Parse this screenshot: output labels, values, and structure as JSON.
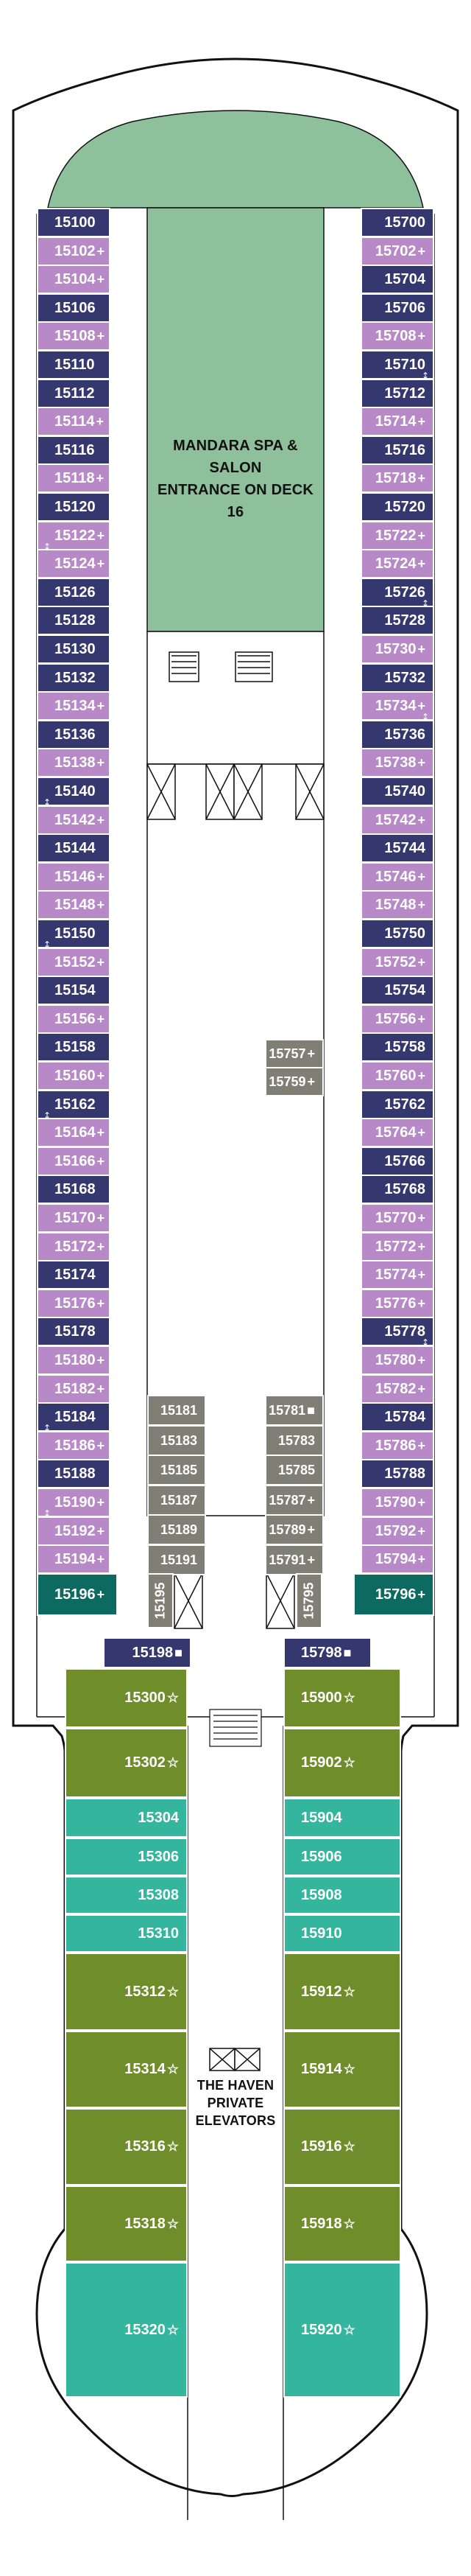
{
  "colors": {
    "navy": "#35386e",
    "lilac": "#b889c7",
    "green_spa": "#8ec09c",
    "olive": "#6f8d2a",
    "teal": "#34b59d",
    "teal_dark": "#0d6a60",
    "grey": "#7f7f76",
    "outline": "#111111"
  },
  "icons": {
    "balcony_symbol": "+",
    "accessible_symbol": "■",
    "suite_symbol": "☆",
    "connecting_symbol": "↕",
    "elevator_symbol": "elevator-icon"
  },
  "labels": {
    "spa": [
      "MANDARA SPA & SALON",
      "ENTRANCE ON DECK 16"
    ],
    "haven": [
      "THE HAVEN",
      "PRIVATE",
      "ELEVATORS"
    ]
  },
  "rooms": {
    "left_column": [
      {
        "num": "15100",
        "sym": "",
        "type": "navy"
      },
      {
        "num": "15102",
        "sym": "+",
        "type": "lilac"
      },
      {
        "num": "15104",
        "sym": "+",
        "type": "lilac"
      },
      {
        "num": "15106",
        "sym": "",
        "type": "navy"
      },
      {
        "num": "15108",
        "sym": "+",
        "type": "lilac"
      },
      {
        "num": "15110",
        "sym": "",
        "type": "navy"
      },
      {
        "num": "15112",
        "sym": "",
        "type": "navy"
      },
      {
        "num": "15114",
        "sym": "+",
        "type": "lilac"
      },
      {
        "num": "15116",
        "sym": "",
        "type": "navy"
      },
      {
        "num": "15118",
        "sym": "+",
        "type": "lilac"
      },
      {
        "num": "15120",
        "sym": "",
        "type": "navy"
      },
      {
        "num": "15122",
        "sym": "+",
        "type": "lilac"
      },
      {
        "num": "15124",
        "sym": "+",
        "type": "lilac"
      },
      {
        "num": "15126",
        "sym": "",
        "type": "navy"
      },
      {
        "num": "15128",
        "sym": "",
        "type": "navy"
      },
      {
        "num": "15130",
        "sym": "",
        "type": "navy"
      },
      {
        "num": "15132",
        "sym": "",
        "type": "navy"
      },
      {
        "num": "15134",
        "sym": "+",
        "type": "lilac"
      },
      {
        "num": "15136",
        "sym": "",
        "type": "navy"
      },
      {
        "num": "15138",
        "sym": "+",
        "type": "lilac"
      },
      {
        "num": "15140",
        "sym": "",
        "type": "navy"
      },
      {
        "num": "15142",
        "sym": "+",
        "type": "lilac"
      },
      {
        "num": "15144",
        "sym": "",
        "type": "navy"
      },
      {
        "num": "15146",
        "sym": "+",
        "type": "lilac"
      },
      {
        "num": "15148",
        "sym": "+",
        "type": "lilac"
      },
      {
        "num": "15150",
        "sym": "",
        "type": "navy"
      },
      {
        "num": "15152",
        "sym": "+",
        "type": "lilac"
      },
      {
        "num": "15154",
        "sym": "",
        "type": "navy"
      },
      {
        "num": "15156",
        "sym": "+",
        "type": "lilac"
      },
      {
        "num": "15158",
        "sym": "",
        "type": "navy"
      },
      {
        "num": "15160",
        "sym": "+",
        "type": "lilac"
      },
      {
        "num": "15162",
        "sym": "",
        "type": "navy"
      },
      {
        "num": "15164",
        "sym": "+",
        "type": "lilac"
      },
      {
        "num": "15166",
        "sym": "+",
        "type": "lilac"
      },
      {
        "num": "15168",
        "sym": "",
        "type": "navy"
      },
      {
        "num": "15170",
        "sym": "+",
        "type": "lilac"
      },
      {
        "num": "15172",
        "sym": "+",
        "type": "lilac"
      },
      {
        "num": "15174",
        "sym": "",
        "type": "navy"
      },
      {
        "num": "15176",
        "sym": "+",
        "type": "lilac"
      },
      {
        "num": "15178",
        "sym": "",
        "type": "navy"
      },
      {
        "num": "15180",
        "sym": "+",
        "type": "lilac"
      },
      {
        "num": "15182",
        "sym": "+",
        "type": "lilac"
      },
      {
        "num": "15184",
        "sym": "",
        "type": "navy"
      },
      {
        "num": "15186",
        "sym": "+",
        "type": "lilac"
      },
      {
        "num": "15188",
        "sym": "",
        "type": "navy"
      },
      {
        "num": "15190",
        "sym": "+",
        "type": "lilac"
      },
      {
        "num": "15192",
        "sym": "+",
        "type": "lilac"
      },
      {
        "num": "15194",
        "sym": "+",
        "type": "lilac"
      }
    ],
    "right_column": [
      {
        "num": "15700",
        "sym": "",
        "type": "navy"
      },
      {
        "num": "15702",
        "sym": "+",
        "type": "lilac"
      },
      {
        "num": "15704",
        "sym": "",
        "type": "navy"
      },
      {
        "num": "15706",
        "sym": "",
        "type": "navy"
      },
      {
        "num": "15708",
        "sym": "+",
        "type": "lilac"
      },
      {
        "num": "15710",
        "sym": "",
        "type": "navy"
      },
      {
        "num": "15712",
        "sym": "",
        "type": "navy"
      },
      {
        "num": "15714",
        "sym": "+",
        "type": "lilac"
      },
      {
        "num": "15716",
        "sym": "",
        "type": "navy"
      },
      {
        "num": "15718",
        "sym": "+",
        "type": "lilac"
      },
      {
        "num": "15720",
        "sym": "",
        "type": "navy"
      },
      {
        "num": "15722",
        "sym": "+",
        "type": "lilac"
      },
      {
        "num": "15724",
        "sym": "+",
        "type": "lilac"
      },
      {
        "num": "15726",
        "sym": "",
        "type": "navy"
      },
      {
        "num": "15728",
        "sym": "",
        "type": "navy"
      },
      {
        "num": "15730",
        "sym": "+",
        "type": "lilac"
      },
      {
        "num": "15732",
        "sym": "",
        "type": "navy"
      },
      {
        "num": "15734",
        "sym": "+",
        "type": "lilac"
      },
      {
        "num": "15736",
        "sym": "",
        "type": "navy"
      },
      {
        "num": "15738",
        "sym": "+",
        "type": "lilac"
      },
      {
        "num": "15740",
        "sym": "",
        "type": "navy"
      },
      {
        "num": "15742",
        "sym": "+",
        "type": "lilac"
      },
      {
        "num": "15744",
        "sym": "",
        "type": "navy"
      },
      {
        "num": "15746",
        "sym": "+",
        "type": "lilac"
      },
      {
        "num": "15748",
        "sym": "+",
        "type": "lilac"
      },
      {
        "num": "15750",
        "sym": "",
        "type": "navy"
      },
      {
        "num": "15752",
        "sym": "+",
        "type": "lilac"
      },
      {
        "num": "15754",
        "sym": "",
        "type": "navy"
      },
      {
        "num": "15756",
        "sym": "+",
        "type": "lilac"
      },
      {
        "num": "15758",
        "sym": "",
        "type": "navy"
      },
      {
        "num": "15760",
        "sym": "+",
        "type": "lilac"
      },
      {
        "num": "15762",
        "sym": "",
        "type": "navy"
      },
      {
        "num": "15764",
        "sym": "+",
        "type": "lilac"
      },
      {
        "num": "15766",
        "sym": "",
        "type": "navy"
      },
      {
        "num": "15768",
        "sym": "",
        "type": "navy"
      },
      {
        "num": "15770",
        "sym": "+",
        "type": "lilac"
      },
      {
        "num": "15772",
        "sym": "+",
        "type": "lilac"
      },
      {
        "num": "15774",
        "sym": "+",
        "type": "lilac"
      },
      {
        "num": "15776",
        "sym": "+",
        "type": "lilac"
      },
      {
        "num": "15778",
        "sym": "",
        "type": "navy"
      },
      {
        "num": "15780",
        "sym": "+",
        "type": "lilac"
      },
      {
        "num": "15782",
        "sym": "+",
        "type": "lilac"
      },
      {
        "num": "15784",
        "sym": "",
        "type": "navy"
      },
      {
        "num": "15786",
        "sym": "+",
        "type": "lilac"
      },
      {
        "num": "15788",
        "sym": "",
        "type": "navy"
      },
      {
        "num": "15790",
        "sym": "+",
        "type": "lilac"
      },
      {
        "num": "15792",
        "sym": "+",
        "type": "lilac"
      },
      {
        "num": "15794",
        "sym": "+",
        "type": "lilac"
      }
    ],
    "inner_left": [
      {
        "num": "15181",
        "sym": ""
      },
      {
        "num": "15183",
        "sym": ""
      },
      {
        "num": "15185",
        "sym": ""
      },
      {
        "num": "15187",
        "sym": ""
      },
      {
        "num": "15189",
        "sym": ""
      },
      {
        "num": "15191",
        "sym": ""
      }
    ],
    "inner_right": [
      {
        "num": "15781",
        "sym": "■"
      },
      {
        "num": "15783",
        "sym": ""
      },
      {
        "num": "15785",
        "sym": ""
      },
      {
        "num": "15787",
        "sym": "+"
      },
      {
        "num": "15789",
        "sym": "+"
      },
      {
        "num": "15791",
        "sym": "+"
      }
    ],
    "inner_mid": [
      {
        "num": "15757",
        "sym": "+"
      },
      {
        "num": "15759",
        "sym": "+"
      }
    ],
    "rotated": [
      {
        "num": "15195"
      },
      {
        "num": "15795"
      }
    ],
    "corner": [
      {
        "num": "15196",
        "sym": "+"
      },
      {
        "num": "15796",
        "sym": "+"
      }
    ],
    "haven_accessible": [
      {
        "num": "15198",
        "sym": "■"
      },
      {
        "num": "15798",
        "sym": "■"
      }
    ],
    "haven_left": [
      {
        "num": "15300",
        "sym": "☆",
        "type": "olive"
      },
      {
        "num": "15302",
        "sym": "☆",
        "type": "olive"
      },
      {
        "num": "15304",
        "sym": "",
        "type": "teal"
      },
      {
        "num": "15306",
        "sym": "",
        "type": "teal"
      },
      {
        "num": "15308",
        "sym": "",
        "type": "teal"
      },
      {
        "num": "15310",
        "sym": "",
        "type": "teal"
      },
      {
        "num": "15312",
        "sym": "☆",
        "type": "olive"
      },
      {
        "num": "15314",
        "sym": "☆",
        "type": "olive"
      },
      {
        "num": "15316",
        "sym": "☆",
        "type": "olive"
      },
      {
        "num": "15318",
        "sym": "☆",
        "type": "olive"
      },
      {
        "num": "15320",
        "sym": "☆",
        "type": "teal"
      }
    ],
    "haven_right": [
      {
        "num": "15900",
        "sym": "☆",
        "type": "olive"
      },
      {
        "num": "15902",
        "sym": "☆",
        "type": "olive"
      },
      {
        "num": "15904",
        "sym": "",
        "type": "teal"
      },
      {
        "num": "15906",
        "sym": "",
        "type": "teal"
      },
      {
        "num": "15908",
        "sym": "",
        "type": "teal"
      },
      {
        "num": "15910",
        "sym": "",
        "type": "teal"
      },
      {
        "num": "15912",
        "sym": "☆",
        "type": "olive"
      },
      {
        "num": "15914",
        "sym": "☆",
        "type": "olive"
      },
      {
        "num": "15916",
        "sym": "☆",
        "type": "olive"
      },
      {
        "num": "15918",
        "sym": "☆",
        "type": "olive"
      },
      {
        "num": "15920",
        "sym": "☆",
        "type": "teal"
      }
    ]
  }
}
